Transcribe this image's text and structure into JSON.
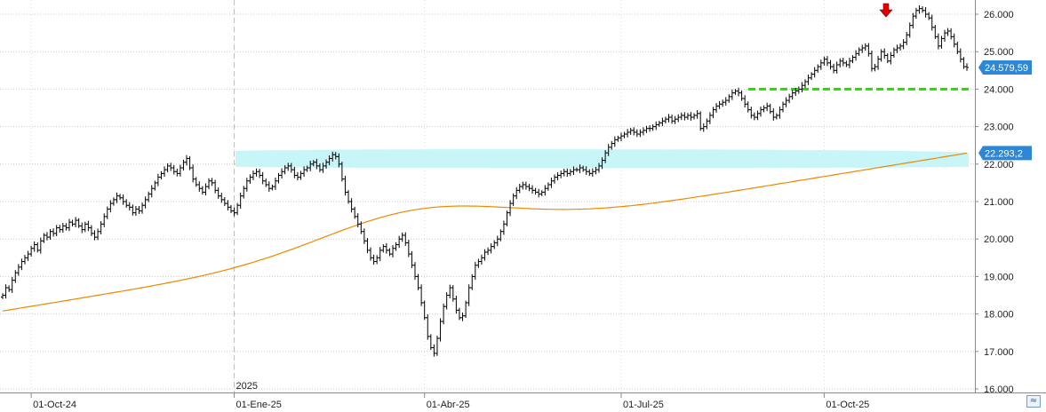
{
  "chart_data": {
    "type": "ohlc",
    "ylim": [
      16000,
      26300
    ],
    "y_axis_position": "right",
    "grid": "horizontal-dotted",
    "y_ticks": [
      "26.000",
      "25.000",
      "24.000",
      "23.000",
      "22.000",
      "21.000",
      "20.000",
      "19.000",
      "18.000",
      "17.000",
      "16.000"
    ],
    "x_ticks": [
      {
        "label": "01-Oct-24",
        "bar": 9
      },
      {
        "label": "01-Ene-25",
        "bar": 73
      },
      {
        "label": "01-Abr-25",
        "bar": 133
      },
      {
        "label": "01-Jul-25",
        "bar": 195
      },
      {
        "label": "01-Oct-25",
        "bar": 259
      }
    ],
    "year_marker": {
      "label": "2025",
      "bar": 73
    },
    "closes": [
      18500,
      18700,
      18650,
      18900,
      19100,
      19250,
      19400,
      19500,
      19600,
      19750,
      19850,
      19700,
      19950,
      20100,
      20050,
      20200,
      20150,
      20300,
      20250,
      20350,
      20300,
      20450,
      20400,
      20500,
      20350,
      20250,
      20400,
      20300,
      20150,
      20050,
      20200,
      20400,
      20600,
      20800,
      20950,
      21050,
      21150,
      21100,
      21000,
      20900,
      20850,
      20700,
      20800,
      20750,
      20900,
      21050,
      21200,
      21350,
      21500,
      21650,
      21750,
      21850,
      21950,
      21900,
      21800,
      21750,
      21900,
      22050,
      22150,
      21900,
      21600,
      21450,
      21350,
      21250,
      21400,
      21550,
      21500,
      21300,
      21150,
      21050,
      20950,
      20850,
      20750,
      20700,
      20900,
      21150,
      21350,
      21550,
      21650,
      21750,
      21800,
      21700,
      21550,
      21450,
      21350,
      21400,
      21550,
      21700,
      21800,
      21900,
      21950,
      21850,
      21700,
      21650,
      21750,
      21850,
      21900,
      22000,
      22050,
      21950,
      21850,
      21950,
      22050,
      22150,
      22250,
      22200,
      22000,
      21600,
      21250,
      21000,
      20800,
      20600,
      20400,
      20200,
      19950,
      19700,
      19500,
      19400,
      19500,
      19700,
      19800,
      19700,
      19600,
      19750,
      19850,
      20000,
      20100,
      19900,
      19600,
      19300,
      19000,
      18700,
      18300,
      17900,
      17400,
      17100,
      16950,
      17350,
      17800,
      18200,
      18500,
      18700,
      18400,
      18100,
      17900,
      17950,
      18300,
      18700,
      19000,
      19300,
      19400,
      19500,
      19650,
      19700,
      19800,
      19900,
      20000,
      20200,
      20400,
      20700,
      20950,
      21150,
      21300,
      21400,
      21450,
      21400,
      21350,
      21300,
      21250,
      21200,
      21250,
      21350,
      21450,
      21550,
      21650,
      21700,
      21750,
      21800,
      21750,
      21800,
      21850,
      21850,
      21900,
      21850,
      21800,
      21750,
      21800,
      21850,
      21950,
      22100,
      22300,
      22450,
      22550,
      22650,
      22700,
      22750,
      22800,
      22850,
      22900,
      22850,
      22800,
      22850,
      22900,
      22950,
      22950,
      23000,
      23050,
      23100,
      23150,
      23200,
      23250,
      23150,
      23200,
      23250,
      23300,
      23250,
      23300,
      23250,
      23300,
      23350,
      22950,
      23000,
      23150,
      23300,
      23450,
      23550,
      23600,
      23650,
      23700,
      23800,
      23900,
      23950,
      23900,
      23750,
      23600,
      23450,
      23300,
      23250,
      23350,
      23450,
      23500,
      23550,
      23400,
      23250,
      23300,
      23450,
      23600,
      23700,
      23800,
      23900,
      23950,
      24000,
      24100,
      24200,
      24300,
      24400,
      24500,
      24600,
      24700,
      24800,
      24700,
      24600,
      24500,
      24650,
      24750,
      24700,
      24650,
      24750,
      24850,
      24950,
      25050,
      25100,
      25150,
      24950,
      24550,
      24600,
      24800,
      25000,
      24900,
      24750,
      24900,
      25050,
      25100,
      25150,
      25250,
      25450,
      25700,
      25950,
      26100,
      26150,
      26100,
      26000,
      25900,
      25650,
      25400,
      25150,
      25350,
      25500,
      25550,
      25400,
      25200,
      25000,
      24800,
      24600,
      24580
    ]
  },
  "sma_line": {
    "label": "22.293,2",
    "value_start": 18080,
    "value_end": 22293
  },
  "last_price": {
    "label": "24.579,59",
    "value": 24579.59
  },
  "support_line": {
    "value": 24000,
    "color": "#22dd00"
  },
  "resistance_zone": {
    "low": 22000,
    "high": 22300,
    "color": "#c8f6f8"
  },
  "sell_arrow": {
    "color": "#e00000"
  },
  "colors": {
    "bars": "#000000",
    "sma": "#ee8800",
    "badge": "#2d86d6",
    "grid": "#c9c9c9",
    "axis": "#888888"
  },
  "corner_button_icon": "expand-icon"
}
